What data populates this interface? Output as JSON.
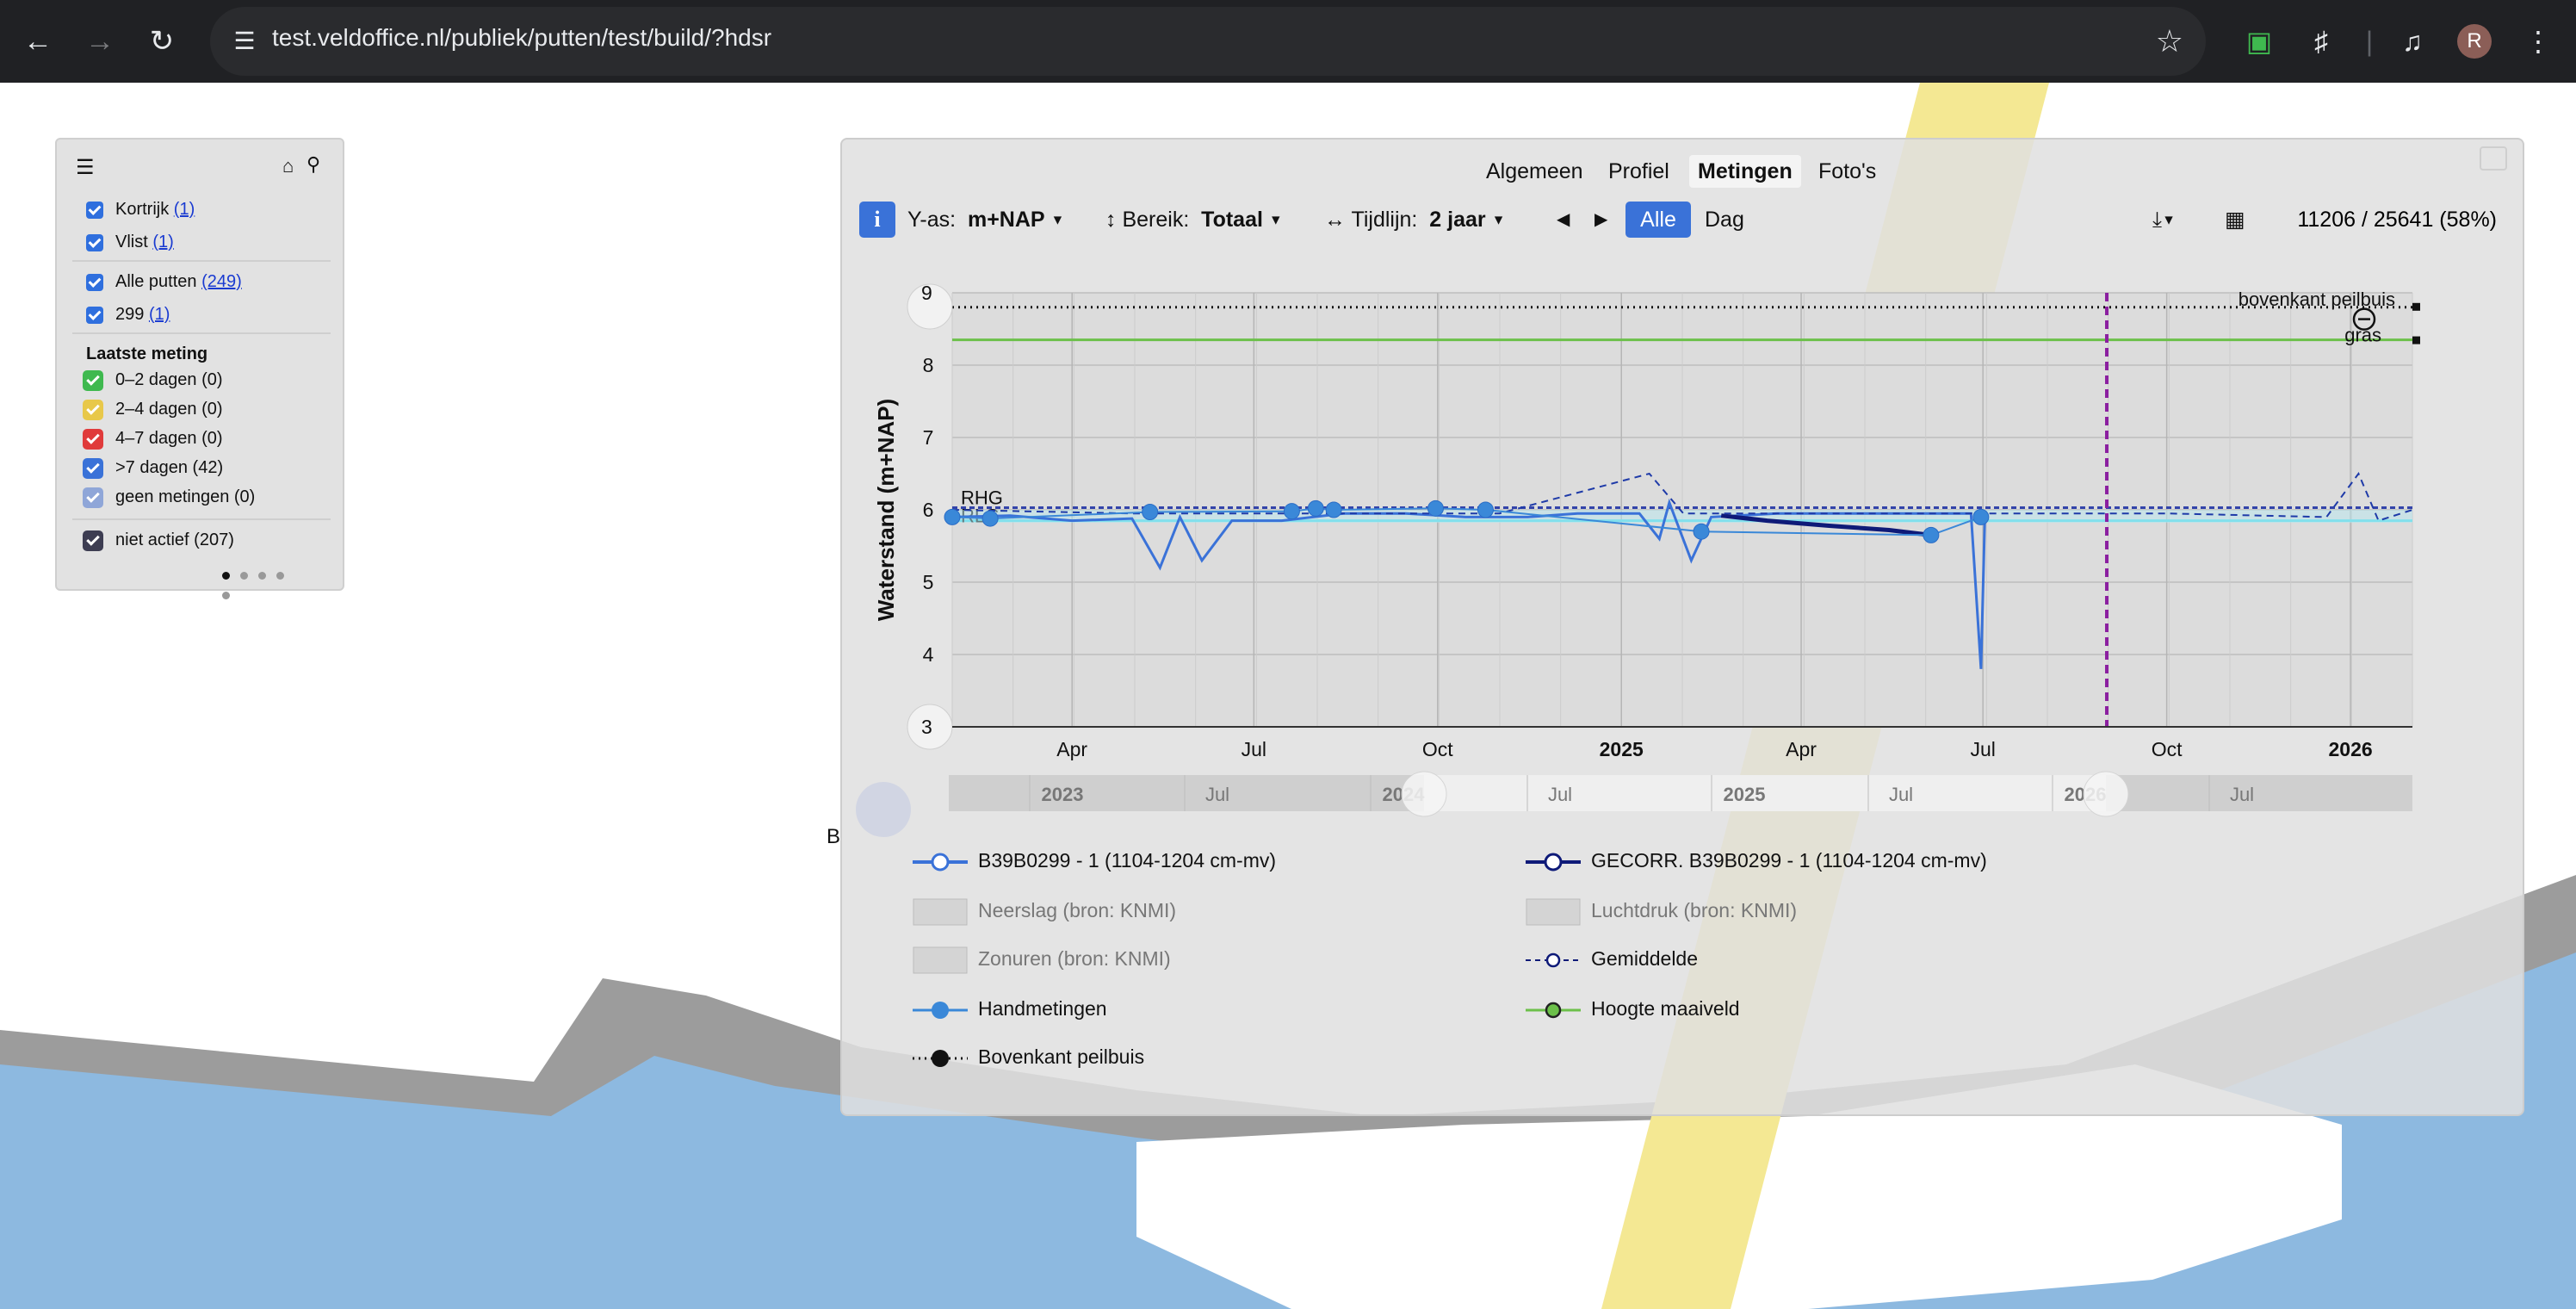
{
  "browser": {
    "url": "test.veldoffice.nl/publiek/putten/test/build/?hdsr",
    "avatar_letter": "R",
    "icons": [
      "back-icon",
      "forward-icon",
      "reload-icon",
      "site-info-icon",
      "star-icon",
      "screen-capture-icon",
      "extensions-icon",
      "media-icon",
      "more-icon"
    ]
  },
  "legend_panel": {
    "items": [
      {
        "label": "Kortrijk",
        "count": "(1)"
      },
      {
        "label": "Vlist",
        "count": "(1)"
      },
      {
        "label": "Alle putten",
        "count": "(249)"
      },
      {
        "label": "299",
        "count": "(1)"
      }
    ],
    "section_title": "Laatste meting",
    "buckets": [
      {
        "label": "0–2 dagen (0)",
        "color": "#3fb94f"
      },
      {
        "label": "2–4 dagen (0)",
        "color": "#e8c84a"
      },
      {
        "label": "4–7 dagen (0)",
        "color": "#e03b3b"
      },
      {
        "label": ">7 dagen (42)",
        "color": "#3a72d8"
      },
      {
        "label": "geen metingen (0)",
        "color": "#8fa6d8"
      }
    ],
    "inactive": {
      "label": "niet actief (207)",
      "color": "#3d3d52"
    }
  },
  "chart_panel": {
    "tabs": [
      {
        "label": "Algemeen",
        "active": false
      },
      {
        "label": "Profiel",
        "active": false
      },
      {
        "label": "Metingen",
        "active": true
      },
      {
        "label": "Foto's",
        "active": false
      }
    ],
    "toolbar": {
      "info": "i",
      "yaxis_label": "Y-as:",
      "yaxis_value": "m+NAP",
      "bereik_label": "Bereik:",
      "bereik_value": "Totaal",
      "tijdlijn_label": "Tijdlijn:",
      "tijdlijn_value": "2 jaar",
      "alle": "Alle",
      "dag": "Dag",
      "counter": "11206 / 25641 (58%)"
    },
    "map_stray_label": "B",
    "chart_data": {
      "type": "line",
      "ylabel": "Waterstand (m+NAP)",
      "ylim": [
        3,
        9
      ],
      "yticks": [
        "9",
        "8",
        "7",
        "6",
        "5",
        "4",
        "3"
      ],
      "xticks": [
        "Apr",
        "Jul",
        "Oct",
        "2025",
        "Apr",
        "Jul",
        "Oct",
        "2026"
      ],
      "navigator_ticks": [
        "2023",
        "Jul",
        "2024",
        "Jul",
        "2025",
        "Jul",
        "2026",
        "Jul"
      ],
      "reference_lines": [
        {
          "name": "bovenkant peilbuis",
          "y": 8.8,
          "style": "dotted",
          "color": "#111111"
        },
        {
          "name": "gras",
          "y": 8.35,
          "style": "solid",
          "color": "#6cc04a"
        },
        {
          "name": "RHG",
          "y": 6.03,
          "style": "dashed",
          "color": "#3344aa"
        },
        {
          "name": "RLG",
          "y": 5.85,
          "style": "solid",
          "color": "#4dd8e8"
        }
      ],
      "x_start": "2024-02-01",
      "x_end": "2026-02-01",
      "now_marker": "2025-09-01",
      "series": [
        {
          "name": "B39B0299 - 1 (1104-1204 cm-mv)",
          "color": "#3a72d8",
          "points": [
            [
              "2024-02-01",
              5.9
            ],
            [
              "2024-03-01",
              5.92
            ],
            [
              "2024-04-01",
              5.85
            ],
            [
              "2024-05-01",
              5.88
            ],
            [
              "2024-05-15",
              5.2
            ],
            [
              "2024-05-25",
              5.9
            ],
            [
              "2024-06-05",
              5.3
            ],
            [
              "2024-06-20",
              5.85
            ],
            [
              "2024-07-15",
              5.85
            ],
            [
              "2024-08-15",
              5.95
            ],
            [
              "2024-09-15",
              5.95
            ],
            [
              "2024-10-15",
              5.9
            ],
            [
              "2024-11-15",
              5.9
            ],
            [
              "2024-12-10",
              5.95
            ],
            [
              "2025-01-10",
              5.95
            ],
            [
              "2025-01-20",
              5.6
            ],
            [
              "2025-01-25",
              6.1
            ],
            [
              "2025-02-05",
              5.3
            ],
            [
              "2025-02-15",
              5.9
            ],
            [
              "2025-03-20",
              5.95
            ],
            [
              "2025-05-15",
              5.95
            ],
            [
              "2025-06-10",
              5.95
            ],
            [
              "2025-06-25",
              5.95
            ],
            [
              "2025-06-30",
              3.8
            ],
            [
              "2025-07-02",
              5.95
            ]
          ]
        },
        {
          "name": "GECORR. B39B0299 - 1 (1104-1204 cm-mv)",
          "color": "#0e1a78",
          "points": [
            [
              "2025-02-20",
              5.92
            ],
            [
              "2025-03-15",
              5.85
            ],
            [
              "2025-04-15",
              5.78
            ],
            [
              "2025-05-15",
              5.72
            ],
            [
              "2025-06-05",
              5.65
            ]
          ]
        },
        {
          "name": "Gemiddelde",
          "color": "#1e3aa8",
          "points": [
            [
              "2024-02-01",
              6.0
            ],
            [
              "2024-05-01",
              5.95
            ],
            [
              "2024-08-01",
              5.95
            ],
            [
              "2024-11-01",
              5.95
            ],
            [
              "2025-01-15",
              6.5
            ],
            [
              "2025-02-01",
              5.95
            ],
            [
              "2025-04-01",
              5.95
            ],
            [
              "2025-07-01",
              5.95
            ],
            [
              "2025-10-01",
              5.95
            ],
            [
              "2025-12-20",
              5.9
            ],
            [
              "2026-01-05",
              6.5
            ],
            [
              "2026-01-15",
              5.85
            ],
            [
              "2026-02-01",
              6.0
            ]
          ]
        },
        {
          "name": "Handmetingen",
          "color": "#3a88d8",
          "points": [
            [
              "2024-02-01",
              5.9
            ],
            [
              "2024-02-20",
              5.88
            ],
            [
              "2024-05-10",
              5.97
            ],
            [
              "2024-07-20",
              5.98
            ],
            [
              "2024-08-01",
              6.02
            ],
            [
              "2024-08-10",
              6.0
            ],
            [
              "2024-09-30",
              6.02
            ],
            [
              "2024-10-25",
              6.0
            ],
            [
              "2025-02-10",
              5.7
            ],
            [
              "2025-06-05",
              5.65
            ],
            [
              "2025-06-30",
              5.9
            ]
          ]
        }
      ],
      "legend": [
        {
          "name": "B39B0299 - 1 (1104-1204 cm-mv)",
          "style": "line-open-circle",
          "color": "#3a72d8",
          "muted": false
        },
        {
          "name": "GECORR. B39B0299 - 1 (1104-1204 cm-mv)",
          "style": "line-open-circle",
          "color": "#0e1a78",
          "muted": false
        },
        {
          "name": "Neerslag (bron: KNMI)",
          "style": "box",
          "color": "#cccccc",
          "muted": true
        },
        {
          "name": "Luchtdruk (bron: KNMI)",
          "style": "box",
          "color": "#cccccc",
          "muted": true
        },
        {
          "name": "Zonuren (bron: KNMI)",
          "style": "box",
          "color": "#cccccc",
          "muted": true
        },
        {
          "name": "Gemiddelde",
          "style": "dash-open-circle",
          "color": "#0e1a78",
          "muted": false
        },
        {
          "name": "Handmetingen",
          "style": "line-filled-circle",
          "color": "#3a88d8",
          "muted": false
        },
        {
          "name": "Hoogte maaiveld",
          "style": "line-green-circle",
          "color": "#6cc04a",
          "muted": false
        },
        {
          "name": "Bovenkant peilbuis",
          "style": "dotted-black-circle",
          "color": "#111111",
          "muted": false
        }
      ]
    }
  }
}
